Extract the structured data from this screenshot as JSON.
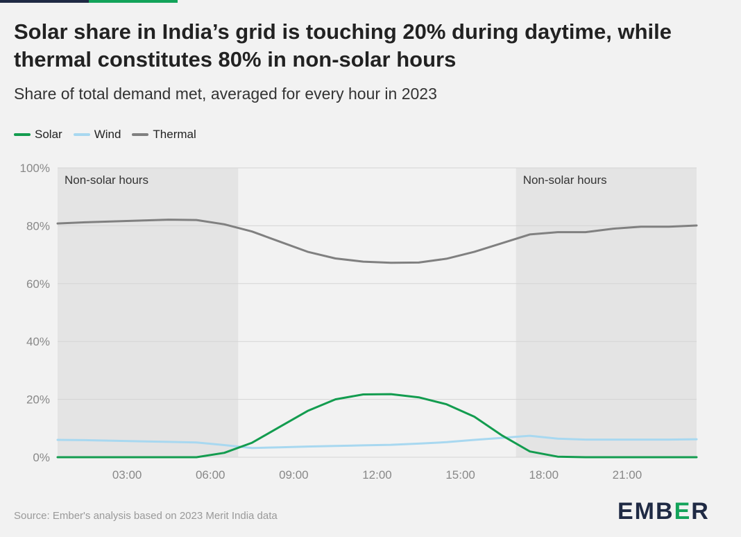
{
  "title": "Solar share in India’s grid is touching 20% during daytime, while thermal constitutes 80% in non-solar hours",
  "subtitle": "Share of total demand met, averaged for every hour in 2023",
  "source": "Source: Ember's analysis based on 2023 Merit India data",
  "logo": {
    "prefix": "EMB",
    "mid": "E",
    "suffix": "R"
  },
  "colors": {
    "solar": "#139c4f",
    "wind": "#a8d8f0",
    "thermal": "#808080",
    "shade": "#e4e4e4",
    "grid": "#d4d4d4",
    "axis_text": "#888888",
    "annotation_text": "#333333"
  },
  "chart_data": {
    "type": "line",
    "x": [
      0.5,
      1.5,
      2.5,
      3.5,
      4.5,
      5.5,
      6.5,
      7.5,
      8.5,
      9.5,
      10.5,
      11.5,
      12.5,
      13.5,
      14.5,
      15.5,
      16.5,
      17.5,
      18.5,
      19.5,
      20.5,
      21.5,
      22.5,
      23.5
    ],
    "xlim": [
      0.5,
      23.5
    ],
    "xticks": [
      3,
      6,
      9,
      12,
      15,
      18,
      21
    ],
    "xtick_labels": [
      "03:00",
      "06:00",
      "09:00",
      "12:00",
      "15:00",
      "18:00",
      "21:00"
    ],
    "ylim": [
      0,
      100
    ],
    "yticks": [
      0,
      20,
      40,
      60,
      80,
      100
    ],
    "ytick_labels": [
      "0%",
      "20%",
      "40%",
      "60%",
      "80%",
      "100%"
    ],
    "grid": true,
    "legend": "top-left",
    "series": [
      {
        "name": "Solar",
        "key": "solar",
        "values": [
          0,
          0,
          0,
          0,
          0,
          0,
          1.5,
          5,
          10.5,
          16,
          20,
          21.7,
          21.8,
          20.7,
          18.3,
          14,
          7.5,
          2,
          0.2,
          0,
          0,
          0,
          0,
          0
        ]
      },
      {
        "name": "Wind",
        "key": "wind",
        "values": [
          6,
          5.9,
          5.7,
          5.5,
          5.3,
          5.1,
          4.2,
          3.2,
          3.4,
          3.7,
          3.9,
          4.1,
          4.3,
          4.7,
          5.2,
          6,
          6.7,
          7.4,
          6.4,
          6.1,
          6.1,
          6.1,
          6.1,
          6.2
        ]
      },
      {
        "name": "Thermal",
        "key": "thermal",
        "values": [
          80.8,
          81.2,
          81.5,
          81.8,
          82.1,
          82,
          80.5,
          78,
          74.5,
          71,
          68.7,
          67.6,
          67.2,
          67.3,
          68.6,
          71,
          74,
          77,
          77.8,
          77.8,
          79,
          79.7,
          79.7,
          80.1
        ]
      }
    ],
    "annotations": [
      {
        "label": "Non-solar hours",
        "x_start": 0.5,
        "x_end": 7
      },
      {
        "label": "Non-solar hours",
        "x_start": 17,
        "x_end": 23.5
      }
    ]
  }
}
